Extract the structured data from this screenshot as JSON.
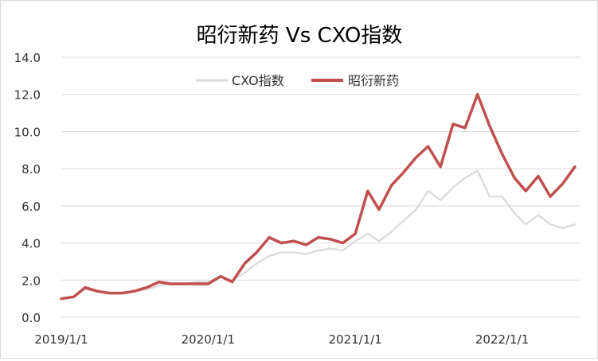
{
  "chart_data": {
    "type": "line",
    "title": "昭衍新药 Vs CXO指数",
    "ylim": [
      0,
      14
    ],
    "yticks": [
      "0.0",
      "2.0",
      "4.0",
      "6.0",
      "8.0",
      "10.0",
      "12.0",
      "14.0"
    ],
    "xticks": [
      "2019/1/1",
      "2020/1/1",
      "2021/1/1",
      "2022/1/1"
    ],
    "grid": true,
    "legend_position": "top-center",
    "series": [
      {
        "name": "CXO指数",
        "color": "#d9d9d9",
        "points": [
          [
            "2019-01-01",
            1.0
          ],
          [
            "2019-02-01",
            1.1
          ],
          [
            "2019-03-01",
            1.5
          ],
          [
            "2019-04-01",
            1.4
          ],
          [
            "2019-05-01",
            1.3
          ],
          [
            "2019-06-01",
            1.3
          ],
          [
            "2019-07-01",
            1.4
          ],
          [
            "2019-08-01",
            1.5
          ],
          [
            "2019-09-01",
            1.7
          ],
          [
            "2019-10-01",
            1.8
          ],
          [
            "2019-11-01",
            1.8
          ],
          [
            "2019-12-01",
            1.9
          ],
          [
            "2020-01-01",
            1.9
          ],
          [
            "2020-02-01",
            2.2
          ],
          [
            "2020-03-01",
            2.0
          ],
          [
            "2020-04-01",
            2.4
          ],
          [
            "2020-05-01",
            2.9
          ],
          [
            "2020-06-01",
            3.3
          ],
          [
            "2020-07-01",
            3.5
          ],
          [
            "2020-08-01",
            3.5
          ],
          [
            "2020-09-01",
            3.4
          ],
          [
            "2020-10-01",
            3.6
          ],
          [
            "2020-11-01",
            3.7
          ],
          [
            "2020-12-01",
            3.6
          ],
          [
            "2021-01-01",
            4.1
          ],
          [
            "2021-02-01",
            4.5
          ],
          [
            "2021-03-01",
            4.1
          ],
          [
            "2021-04-01",
            4.6
          ],
          [
            "2021-05-01",
            5.2
          ],
          [
            "2021-06-01",
            5.8
          ],
          [
            "2021-07-01",
            6.8
          ],
          [
            "2021-08-01",
            6.3
          ],
          [
            "2021-09-01",
            7.0
          ],
          [
            "2021-10-01",
            7.5
          ],
          [
            "2021-11-01",
            7.9
          ],
          [
            "2021-12-01",
            6.5
          ],
          [
            "2022-01-01",
            6.5
          ],
          [
            "2022-02-01",
            5.6
          ],
          [
            "2022-03-01",
            5.0
          ],
          [
            "2022-04-01",
            5.5
          ],
          [
            "2022-05-01",
            5.0
          ],
          [
            "2022-06-01",
            4.8
          ],
          [
            "2022-07-01",
            5.0
          ]
        ]
      },
      {
        "name": "昭衍新药",
        "color": "#c0504d",
        "points": [
          [
            "2019-01-01",
            1.0
          ],
          [
            "2019-02-01",
            1.1
          ],
          [
            "2019-03-01",
            1.6
          ],
          [
            "2019-04-01",
            1.4
          ],
          [
            "2019-05-01",
            1.3
          ],
          [
            "2019-06-01",
            1.3
          ],
          [
            "2019-07-01",
            1.4
          ],
          [
            "2019-08-01",
            1.6
          ],
          [
            "2019-09-01",
            1.9
          ],
          [
            "2019-10-01",
            1.8
          ],
          [
            "2019-11-01",
            1.8
          ],
          [
            "2019-12-01",
            1.8
          ],
          [
            "2020-01-01",
            1.8
          ],
          [
            "2020-02-01",
            2.2
          ],
          [
            "2020-03-01",
            1.9
          ],
          [
            "2020-04-01",
            2.9
          ],
          [
            "2020-05-01",
            3.5
          ],
          [
            "2020-06-01",
            4.3
          ],
          [
            "2020-07-01",
            4.0
          ],
          [
            "2020-08-01",
            4.1
          ],
          [
            "2020-09-01",
            3.9
          ],
          [
            "2020-10-01",
            4.3
          ],
          [
            "2020-11-01",
            4.2
          ],
          [
            "2020-12-01",
            4.0
          ],
          [
            "2021-01-01",
            4.5
          ],
          [
            "2021-02-01",
            6.8
          ],
          [
            "2021-03-01",
            5.8
          ],
          [
            "2021-04-01",
            7.1
          ],
          [
            "2021-05-01",
            7.8
          ],
          [
            "2021-06-01",
            8.6
          ],
          [
            "2021-07-01",
            9.2
          ],
          [
            "2021-08-01",
            8.1
          ],
          [
            "2021-09-01",
            10.4
          ],
          [
            "2021-10-01",
            10.2
          ],
          [
            "2021-11-01",
            12.0
          ],
          [
            "2021-12-01",
            10.3
          ],
          [
            "2022-01-01",
            8.8
          ],
          [
            "2022-02-01",
            7.5
          ],
          [
            "2022-03-01",
            6.8
          ],
          [
            "2022-04-01",
            7.6
          ],
          [
            "2022-05-01",
            6.5
          ],
          [
            "2022-06-01",
            7.2
          ],
          [
            "2022-07-01",
            8.1
          ]
        ]
      }
    ]
  }
}
